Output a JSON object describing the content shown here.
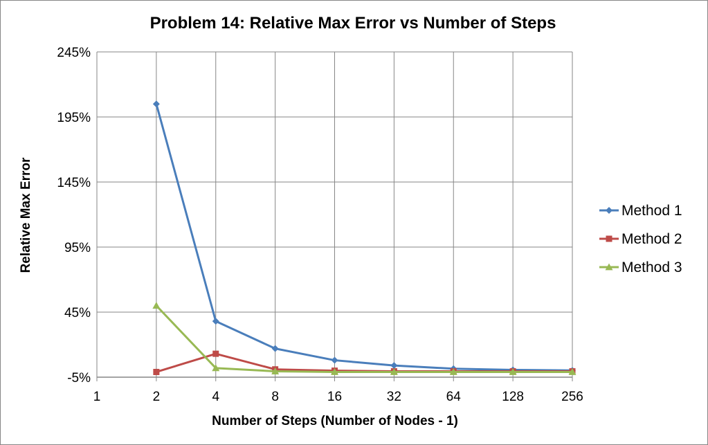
{
  "chart_data": {
    "type": "line",
    "title": "Problem 14: Relative Max Error vs Number of Steps",
    "xlabel": "Number of Steps (Number of Nodes - 1)",
    "ylabel": "Relative Max Error",
    "categories": [
      "1",
      "2",
      "4",
      "8",
      "16",
      "32",
      "64",
      "128",
      "256"
    ],
    "y_ticks": [
      "-5%",
      "45%",
      "95%",
      "145%",
      "195%",
      "245%"
    ],
    "ylim": [
      -5,
      245
    ],
    "y_unit": "%",
    "grid": true,
    "legend_position": "right",
    "series": [
      {
        "name": "Method 1",
        "color": "#4a7ebb",
        "marker": "diamond",
        "values": [
          null,
          205,
          38,
          17,
          8,
          4,
          1.5,
          0.6,
          0.2
        ]
      },
      {
        "name": "Method 2",
        "color": "#be4b48",
        "marker": "square",
        "values": [
          null,
          -1,
          13,
          1,
          0,
          -0.5,
          -0.5,
          -0.5,
          -0.5
        ]
      },
      {
        "name": "Method 3",
        "color": "#98b954",
        "marker": "triangle",
        "values": [
          null,
          50,
          2,
          -0.5,
          -1,
          -1,
          -1,
          -1,
          -1
        ]
      }
    ]
  }
}
